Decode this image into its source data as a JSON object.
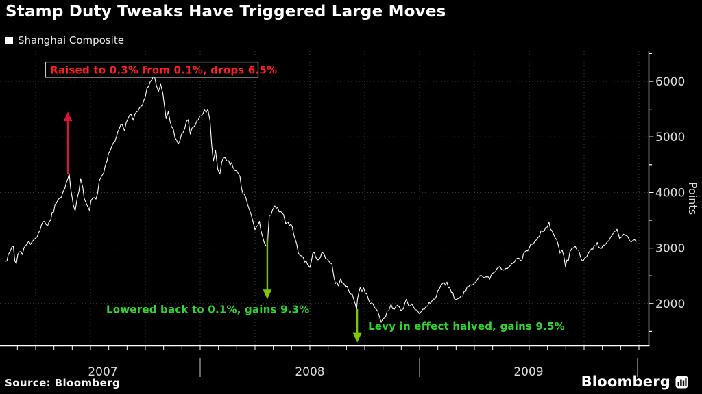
{
  "header": {
    "title": "Stamp Duty Tweaks Have Triggered Large Moves"
  },
  "legend": {
    "label": "Shanghai Composite",
    "swatch_color": "#ffffff"
  },
  "footer": {
    "source": "Source: Bloomberg",
    "brand": "Bloomberg"
  },
  "colors": {
    "background": "#000000",
    "line": "#ffffff",
    "grid": "#3f3f3f",
    "axis": "#ffffff",
    "tick_label": "#dcdcdc",
    "annotation_red": "#ff1f1f",
    "arrow_red": "#d8143c",
    "annotation_green": "#2fd42f",
    "arrow_green": "#7fc800",
    "box_border": "#c8c8c8"
  },
  "chart_data": {
    "type": "line",
    "title": "Stamp Duty Tweaks Have Triggered Large Moves",
    "x_axis": {
      "start": 2007.113,
      "end": 2009.99,
      "year_labels": [
        "2007",
        "2008",
        "2009"
      ],
      "minor_ticks": "monthly",
      "grid": "quarterly",
      "year_boundaries": [
        2008,
        2009,
        2010
      ]
    },
    "y_axis": {
      "label": "Points",
      "side": "right",
      "min": 1250,
      "max": 6540,
      "ticks": [
        2000,
        3000,
        4000,
        5000,
        6000
      ],
      "minor_step": 500,
      "grid": true
    },
    "annotations": [
      {
        "text": "Raised to 0.3% from 0.1%, drops 6.5%",
        "color": "#ff1f1f",
        "boxed": true,
        "box": {
          "t1": 2007.295,
          "t2": 2008.264,
          "v_top": 6350,
          "v_bot": 6075
        },
        "text_anchor": {
          "t": 2007.316,
          "v": 6140
        },
        "arrow": {
          "direction": "up",
          "color": "#d8143c",
          "t": 2007.397,
          "from_value": 4330,
          "to_value": 5455
        }
      },
      {
        "text": "Lowered back to 0.1%, gains 9.3%",
        "color": "#2fd42f",
        "boxed": false,
        "text_anchor": {
          "t": 2007.572,
          "v": 1830
        },
        "arrow": {
          "direction": "down",
          "color": "#7fc800",
          "t": 2008.306,
          "from_value": 3180,
          "to_value": 2080
        }
      },
      {
        "text": "Levy in effect halved, gains 9.5%",
        "color": "#2fd42f",
        "boxed": false,
        "text_anchor": {
          "t": 2008.766,
          "v": 1530
        },
        "arrow": {
          "direction": "down",
          "color": "#7fc800",
          "t": 2008.716,
          "from_value": 1900,
          "to_value": 1300
        }
      }
    ],
    "series": [
      {
        "name": "Shanghai Composite",
        "color": "#ffffff",
        "points": [
          [
            2007.113,
            2760
          ],
          [
            2007.125,
            2880
          ],
          [
            2007.135,
            2950
          ],
          [
            2007.148,
            3040
          ],
          [
            2007.155,
            2770
          ],
          [
            2007.162,
            2720
          ],
          [
            2007.175,
            2930
          ],
          [
            2007.19,
            2880
          ],
          [
            2007.21,
            3070
          ],
          [
            2007.235,
            3120
          ],
          [
            2007.25,
            3180
          ],
          [
            2007.27,
            3320
          ],
          [
            2007.29,
            3480
          ],
          [
            2007.305,
            3400
          ],
          [
            2007.325,
            3640
          ],
          [
            2007.345,
            3810
          ],
          [
            2007.36,
            3900
          ],
          [
            2007.375,
            4020
          ],
          [
            2007.39,
            4180
          ],
          [
            2007.403,
            4335
          ],
          [
            2007.41,
            4060
          ],
          [
            2007.422,
            3770
          ],
          [
            2007.43,
            3670
          ],
          [
            2007.44,
            3910
          ],
          [
            2007.455,
            4250
          ],
          [
            2007.465,
            4090
          ],
          [
            2007.478,
            3830
          ],
          [
            2007.495,
            3680
          ],
          [
            2007.51,
            3900
          ],
          [
            2007.525,
            3880
          ],
          [
            2007.54,
            4210
          ],
          [
            2007.56,
            4350
          ],
          [
            2007.575,
            4560
          ],
          [
            2007.59,
            4750
          ],
          [
            2007.605,
            4900
          ],
          [
            2007.625,
            5100
          ],
          [
            2007.645,
            5220
          ],
          [
            2007.655,
            5110
          ],
          [
            2007.67,
            5320
          ],
          [
            2007.685,
            5410
          ],
          [
            2007.695,
            5300
          ],
          [
            2007.71,
            5450
          ],
          [
            2007.73,
            5550
          ],
          [
            2007.75,
            5720
          ],
          [
            2007.765,
            5910
          ],
          [
            2007.78,
            6030
          ],
          [
            2007.79,
            6124
          ],
          [
            2007.8,
            5930
          ],
          [
            2007.81,
            5820
          ],
          [
            2007.82,
            5950
          ],
          [
            2007.83,
            5780
          ],
          [
            2007.845,
            5330
          ],
          [
            2007.855,
            5460
          ],
          [
            2007.87,
            5180
          ],
          [
            2007.885,
            4984
          ],
          [
            2007.9,
            4870
          ],
          [
            2007.915,
            5050
          ],
          [
            2007.93,
            5160
          ],
          [
            2007.945,
            5310
          ],
          [
            2007.955,
            5050
          ],
          [
            2007.97,
            5180
          ],
          [
            2007.985,
            5290
          ],
          [
            2008.005,
            5380
          ],
          [
            2008.035,
            5497
          ],
          [
            2008.045,
            5290
          ],
          [
            2008.06,
            4560
          ],
          [
            2008.07,
            4760
          ],
          [
            2008.08,
            4420
          ],
          [
            2008.09,
            4330
          ],
          [
            2008.105,
            4620
          ],
          [
            2008.13,
            4570
          ],
          [
            2008.15,
            4450
          ],
          [
            2008.175,
            4330
          ],
          [
            2008.195,
            3980
          ],
          [
            2008.215,
            3800
          ],
          [
            2008.23,
            3630
          ],
          [
            2008.25,
            3330
          ],
          [
            2008.27,
            3480
          ],
          [
            2008.292,
            3100
          ],
          [
            2008.307,
            3030
          ],
          [
            2008.31,
            3278
          ],
          [
            2008.315,
            3583
          ],
          [
            2008.33,
            3690
          ],
          [
            2008.34,
            3760
          ],
          [
            2008.36,
            3650
          ],
          [
            2008.38,
            3600
          ],
          [
            2008.39,
            3440
          ],
          [
            2008.4,
            3470
          ],
          [
            2008.42,
            3380
          ],
          [
            2008.44,
            3070
          ],
          [
            2008.455,
            2870
          ],
          [
            2008.47,
            2830
          ],
          [
            2008.49,
            2700
          ],
          [
            2008.5,
            2650
          ],
          [
            2008.52,
            2920
          ],
          [
            2008.54,
            2790
          ],
          [
            2008.555,
            2920
          ],
          [
            2008.58,
            2800
          ],
          [
            2008.6,
            2720
          ],
          [
            2008.61,
            2470
          ],
          [
            2008.63,
            2320
          ],
          [
            2008.64,
            2440
          ],
          [
            2008.655,
            2360
          ],
          [
            2008.67,
            2310
          ],
          [
            2008.68,
            2200
          ],
          [
            2008.7,
            2080
          ],
          [
            2008.713,
            1896
          ],
          [
            2008.717,
            2075
          ],
          [
            2008.73,
            2297
          ],
          [
            2008.76,
            2170
          ],
          [
            2008.775,
            2000
          ],
          [
            2008.795,
            1930
          ],
          [
            2008.81,
            1860
          ],
          [
            2008.825,
            1664
          ],
          [
            2008.833,
            1729
          ],
          [
            2008.845,
            1760
          ],
          [
            2008.86,
            1875
          ],
          [
            2008.87,
            1986
          ],
          [
            2008.885,
            1900
          ],
          [
            2008.9,
            1970
          ],
          [
            2008.915,
            1872
          ],
          [
            2008.92,
            1890
          ],
          [
            2008.94,
            2080
          ],
          [
            2008.95,
            1960
          ],
          [
            2008.965,
            1990
          ],
          [
            2008.98,
            1890
          ],
          [
            2008.998,
            1821
          ],
          [
            2009.015,
            1900
          ],
          [
            2009.03,
            1950
          ],
          [
            2009.05,
            2000
          ],
          [
            2009.07,
            2080
          ],
          [
            2009.09,
            2260
          ],
          [
            2009.125,
            2389
          ],
          [
            2009.145,
            2200
          ],
          [
            2009.165,
            2071
          ],
          [
            2009.19,
            2140
          ],
          [
            2009.21,
            2220
          ],
          [
            2009.23,
            2340
          ],
          [
            2009.25,
            2370
          ],
          [
            2009.265,
            2440
          ],
          [
            2009.28,
            2510
          ],
          [
            2009.3,
            2480
          ],
          [
            2009.32,
            2440
          ],
          [
            2009.34,
            2560
          ],
          [
            2009.36,
            2650
          ],
          [
            2009.38,
            2600
          ],
          [
            2009.4,
            2630
          ],
          [
            2009.42,
            2720
          ],
          [
            2009.44,
            2800
          ],
          [
            2009.46,
            2780
          ],
          [
            2009.48,
            2930
          ],
          [
            2009.5,
            3000
          ],
          [
            2009.52,
            3080
          ],
          [
            2009.54,
            3190
          ],
          [
            2009.56,
            3300
          ],
          [
            2009.575,
            3370
          ],
          [
            2009.59,
            3471
          ],
          [
            2009.61,
            3260
          ],
          [
            2009.625,
            3150
          ],
          [
            2009.64,
            2910
          ],
          [
            2009.65,
            2960
          ],
          [
            2009.665,
            2667
          ],
          [
            2009.685,
            2930
          ],
          [
            2009.71,
            3030
          ],
          [
            2009.725,
            2960
          ],
          [
            2009.745,
            2765
          ],
          [
            2009.77,
            2910
          ],
          [
            2009.79,
            2980
          ],
          [
            2009.81,
            3100
          ],
          [
            2009.83,
            2995
          ],
          [
            2009.85,
            3080
          ],
          [
            2009.87,
            3190
          ],
          [
            2009.895,
            3310
          ],
          [
            2009.9,
            3338
          ],
          [
            2009.912,
            3170
          ],
          [
            2009.93,
            3250
          ],
          [
            2009.95,
            3200
          ],
          [
            2009.965,
            3110
          ],
          [
            2009.98,
            3150
          ],
          [
            2009.99,
            3120
          ]
        ]
      }
    ]
  }
}
